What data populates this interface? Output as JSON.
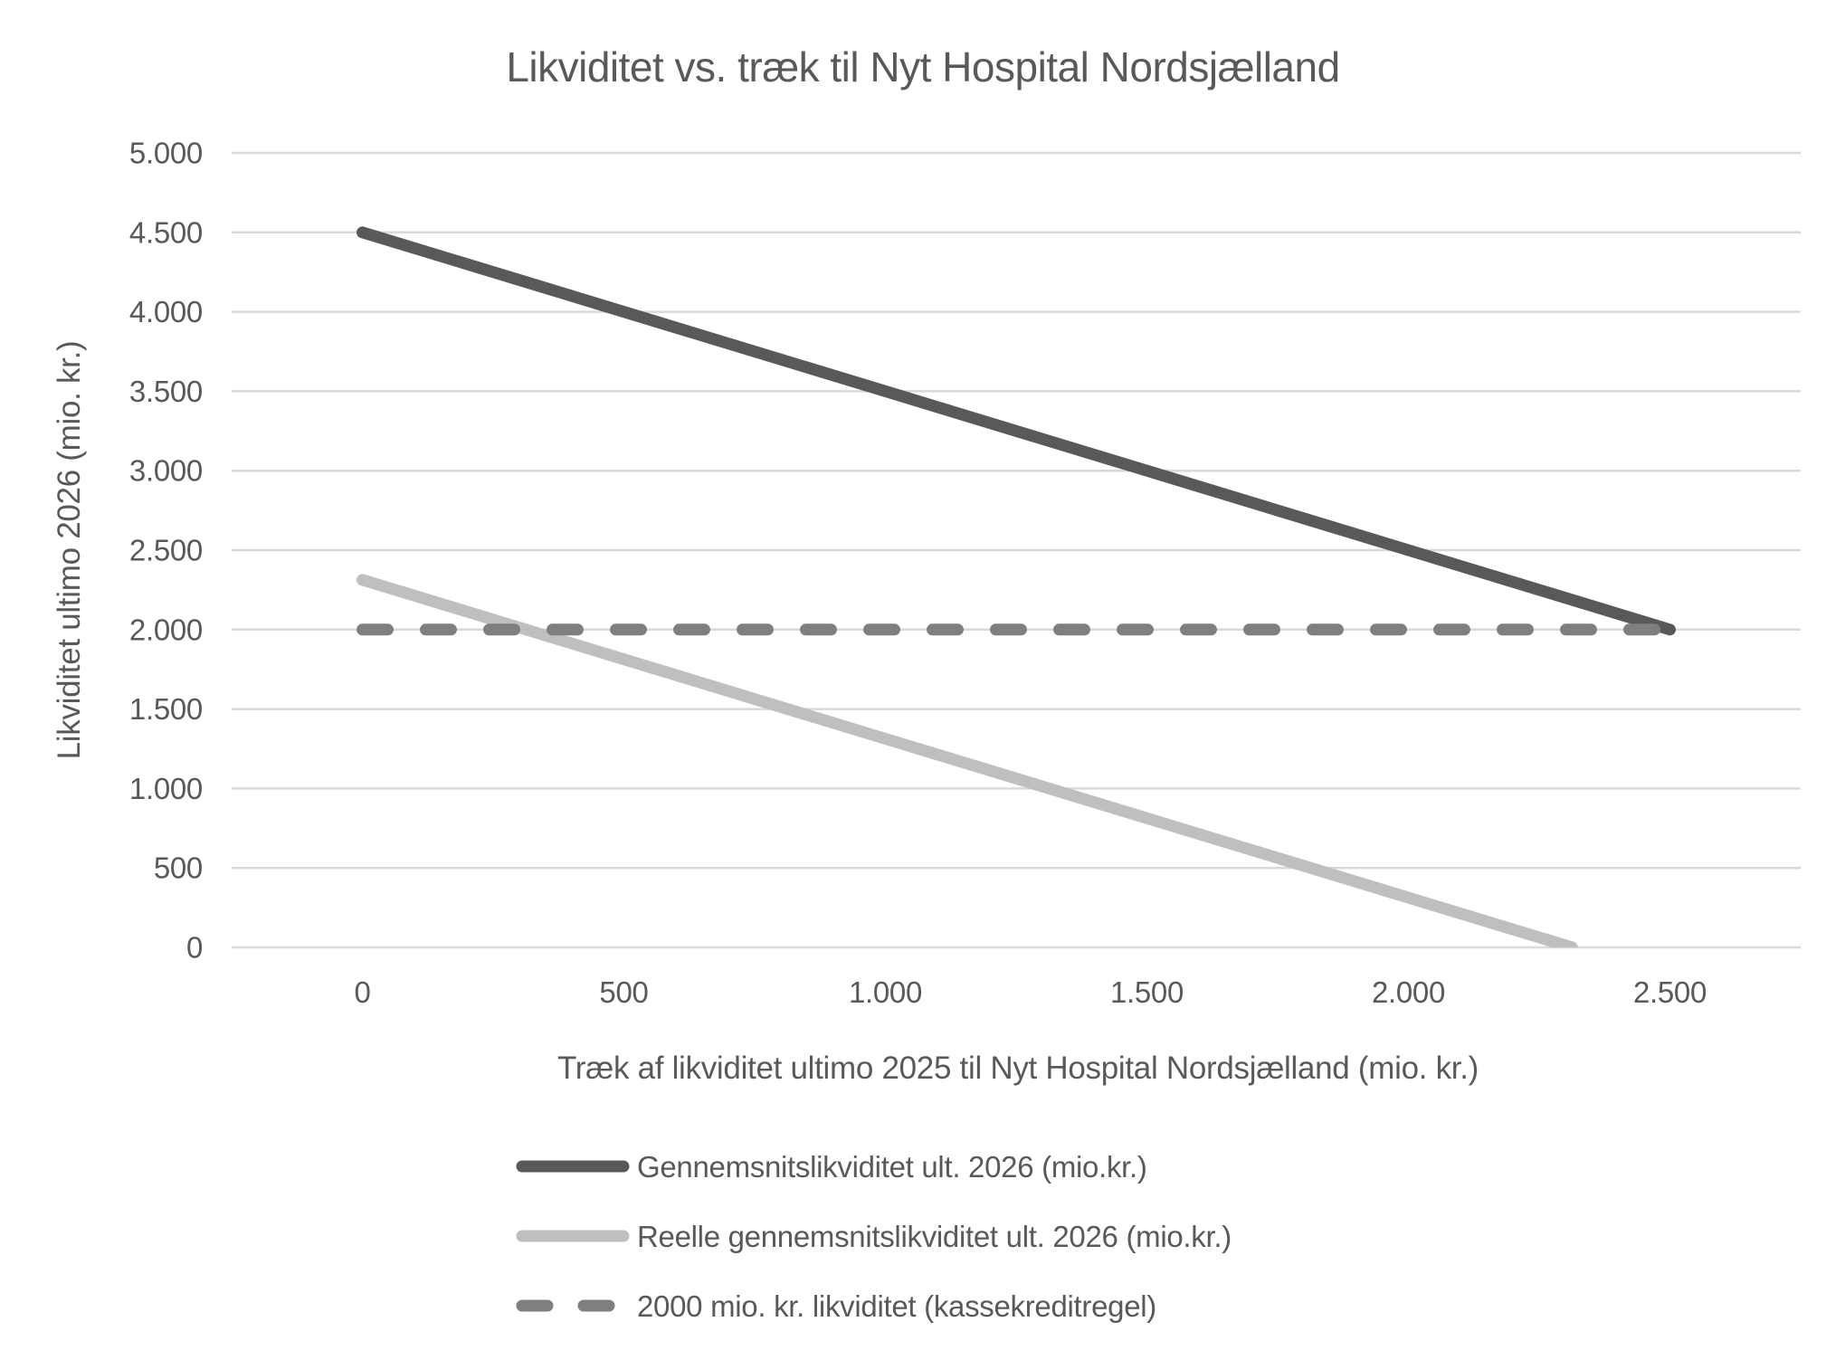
{
  "chart_data": {
    "type": "line",
    "title": "Likviditet vs. træk til Nyt Hospital Nordsjælland",
    "xlabel": "Træk af likviditet ultimo 2025 til Nyt Hospital Nordsjælland (mio. kr.)",
    "ylabel": "Likviditet ultimo 2026 (mio. kr.)",
    "xlim": [
      -250,
      2750
    ],
    "ylim": [
      0,
      5000
    ],
    "x_ticks": [
      0,
      500,
      1000,
      1500,
      2000,
      2500
    ],
    "x_tick_labels": [
      "0",
      "500",
      "1.000",
      "1.500",
      "2.000",
      "2.500"
    ],
    "y_ticks": [
      0,
      500,
      1000,
      1500,
      2000,
      2500,
      3000,
      3500,
      4000,
      4500,
      5000
    ],
    "y_tick_labels": [
      "0",
      "500",
      "1.000",
      "1.500",
      "2.000",
      "2.500",
      "3.000",
      "3.500",
      "4.000",
      "4.500",
      "5.000"
    ],
    "grid": "horizontal",
    "legend_position": "bottom-left",
    "series": [
      {
        "name": "Gennemsnitslikviditet ult. 2026 (mio.kr.)",
        "style": "solid",
        "color": "#595959",
        "points": [
          [
            0,
            4500
          ],
          [
            2500,
            2000
          ]
        ]
      },
      {
        "name": "Reelle gennemsnitslikviditet ult. 2026 (mio.kr.)",
        "style": "solid",
        "color": "#BFBFBF",
        "points": [
          [
            0,
            2313
          ],
          [
            2313,
            0
          ]
        ]
      },
      {
        "name": "2000 mio. kr. likviditet (kassekreditregel)",
        "style": "dashed",
        "color": "#7F7F7F",
        "points": [
          [
            0,
            2000
          ],
          [
            2500,
            2000
          ]
        ]
      }
    ],
    "colors": {
      "background": "#FFFFFF",
      "gridline": "#D9D9D9",
      "text": "#595959"
    }
  }
}
